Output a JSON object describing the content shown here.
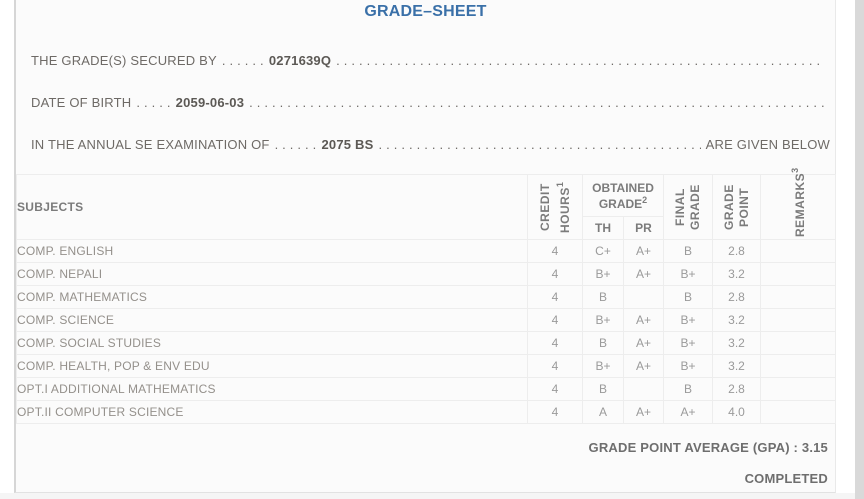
{
  "page": {
    "title": "GRADE–SHEET"
  },
  "info_lines": [
    {
      "label": "THE GRADE(S) SECURED BY",
      "pre_dots": ". . . . . .",
      "value": "0271639Q",
      "post_dots": ". . . . . . . . . . . . . . . . . . . . . . . . . . . . . . . . . . . . . . . . . . . . . . . . . . . . . . . . . . . . . . . . . . . . . . . . . . . . . . . . . . . . . . . . . . . . . . . .",
      "suffix": ""
    },
    {
      "label": "DATE OF BIRTH",
      "pre_dots": ". . . . .",
      "value": "2059-06-03",
      "post_dots": ". . . . . . . . . . . . . . . . . . . . . . . . . . . . . . . . . . . . . . . . . . . . . . . . . . . . . . . . . . . . . . . . . . . . . . . . . . . . . . . . . . . . . . . . . . . . . . . .",
      "suffix": ""
    },
    {
      "label": "IN THE ANNUAL SE EXAMINATION OF",
      "pre_dots": ". . . . . .",
      "value": "2075 BS",
      "post_dots": ". . . . . . . . . . . . . . . . . . . . . . . . . . . . . . . . . . . . . . . . . . . . . . . . . . . . . . . . . . . . . . . . . . . . . . . . . . . . . . . . . . . . . . . . . . . . . . . .",
      "suffix": "ARE GIVEN BELOW"
    }
  ],
  "table": {
    "headers": {
      "subjects": "SUBJECTS",
      "credit_hours": {
        "label": "CREDIT HOURS",
        "sup": "1"
      },
      "obtained_grade": {
        "label": "OBTAINED GRADE",
        "sup": "2"
      },
      "th": "TH",
      "pr": "PR",
      "final_grade": "FINAL GRADE",
      "grade_point": "GRADE POINT",
      "remarks": {
        "label": "REMARKS",
        "sup": "3"
      }
    },
    "rows": [
      {
        "subject": "COMP. ENGLISH",
        "credit_hours": "4",
        "th": "C+",
        "pr": "A+",
        "final_grade": "B",
        "grade_point": "2.8",
        "remarks": ""
      },
      {
        "subject": "COMP. NEPALI",
        "credit_hours": "4",
        "th": "B+",
        "pr": "A+",
        "final_grade": "B+",
        "grade_point": "3.2",
        "remarks": ""
      },
      {
        "subject": "COMP. MATHEMATICS",
        "credit_hours": "4",
        "th": "B",
        "pr": "",
        "final_grade": "B",
        "grade_point": "2.8",
        "remarks": ""
      },
      {
        "subject": "COMP. SCIENCE",
        "credit_hours": "4",
        "th": "B+",
        "pr": "A+",
        "final_grade": "B+",
        "grade_point": "3.2",
        "remarks": ""
      },
      {
        "subject": "COMP. SOCIAL STUDIES",
        "credit_hours": "4",
        "th": "B",
        "pr": "A+",
        "final_grade": "B+",
        "grade_point": "3.2",
        "remarks": ""
      },
      {
        "subject": "COMP. HEALTH, POP & ENV EDU",
        "credit_hours": "4",
        "th": "B+",
        "pr": "A+",
        "final_grade": "B+",
        "grade_point": "3.2",
        "remarks": ""
      },
      {
        "subject": "OPT.I ADDITIONAL MATHEMATICS",
        "credit_hours": "4",
        "th": "B",
        "pr": "",
        "final_grade": "B",
        "grade_point": "2.8",
        "remarks": ""
      },
      {
        "subject": "OPT.II COMPUTER SCIENCE",
        "credit_hours": "4",
        "th": "A",
        "pr": "A+",
        "final_grade": "A+",
        "grade_point": "4.0",
        "remarks": ""
      }
    ]
  },
  "summary": {
    "gpa_label": "GRADE POINT AVERAGE (GPA) :",
    "gpa_value": "3.15",
    "status": "COMPLETED"
  },
  "colors": {
    "title_blue": "#3a70a8",
    "card_background": "#fbfbfb",
    "text_gray": "#6e6a66",
    "scrollbar_gray": "#d9d9d9"
  }
}
